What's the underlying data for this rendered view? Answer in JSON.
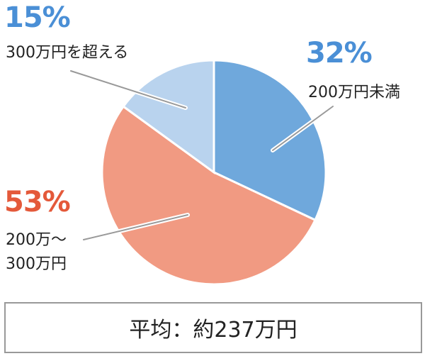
{
  "chart_data": {
    "type": "pie",
    "categories": [
      "200万円未満",
      "200万～\n300万円",
      "300万円を超える"
    ],
    "values": [
      32,
      53,
      15
    ],
    "value_labels": [
      "32%",
      "53%",
      "15%"
    ],
    "colors": [
      "#6fa8dc",
      "#f19a82",
      "#b9d3ee"
    ],
    "label_colors": [
      "#4a8fd6",
      "#e4593a",
      "#4a8fd6"
    ],
    "note": "平均：約237万円"
  }
}
